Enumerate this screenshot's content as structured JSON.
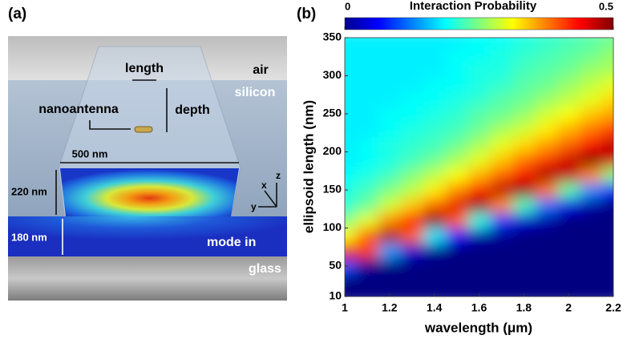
{
  "panel_a": {
    "label": "(a)",
    "labels": {
      "length": "length",
      "depth": "depth",
      "nanoantenna": "nanoantenna",
      "air": "air",
      "silicon": "silicon",
      "width": "500 nm",
      "height": "220 nm",
      "slab": "180 nm",
      "mode": "mode in",
      "glass": "glass",
      "axis_x": "x",
      "axis_y": "y",
      "axis_z": "z"
    }
  },
  "chart_data": {
    "type": "heatmap",
    "panel_label": "(b)",
    "colorbar_title": "Interaction Probability",
    "colorbar_lim": [
      0,
      0.5
    ],
    "colorbar_ticks": [
      0,
      0.5
    ],
    "x_label": "wavelength (μm)",
    "y_label": "ellipsoid length (nm)",
    "xlim": [
      1,
      2.2
    ],
    "ylim": [
      10,
      350
    ],
    "xticks": [
      1,
      1.2,
      1.4,
      1.6,
      1.8,
      2,
      2.2
    ],
    "yticks": [
      10,
      50,
      100,
      150,
      200,
      250,
      300,
      350
    ],
    "x": [
      1,
      1.1,
      1.2,
      1.3,
      1.4,
      1.5,
      1.6,
      1.7,
      1.8,
      1.9,
      2,
      2.1,
      2.2
    ],
    "y": [
      10,
      30,
      50,
      70,
      90,
      110,
      130,
      150,
      170,
      190,
      210,
      230,
      250,
      270,
      290,
      310,
      330,
      350
    ],
    "z": [
      [
        0,
        0,
        0,
        0,
        0,
        0,
        0,
        0,
        0,
        0,
        0,
        0,
        0
      ],
      [
        0,
        0,
        0,
        0,
        0,
        0,
        0,
        0,
        0,
        0,
        0,
        0,
        0
      ],
      [
        0.1,
        0.01,
        0,
        0,
        0,
        0,
        0,
        0,
        0,
        0,
        0,
        0,
        0
      ],
      [
        0.45,
        0.41,
        0.14,
        0.04,
        0.01,
        0,
        0,
        0,
        0,
        0,
        0,
        0,
        0
      ],
      [
        0.31,
        0.39,
        0.48,
        0.39,
        0.18,
        0.07,
        0.02,
        0.01,
        0,
        0,
        0,
        0,
        0
      ],
      [
        0.25,
        0.3,
        0.37,
        0.43,
        0.5,
        0.39,
        0.2,
        0.09,
        0.04,
        0.02,
        0,
        0,
        0
      ],
      [
        0.21,
        0.24,
        0.29,
        0.34,
        0.39,
        0.45,
        0.49,
        0.37,
        0.22,
        0.12,
        0.05,
        0.02,
        0
      ],
      [
        0.2,
        0.22,
        0.25,
        0.28,
        0.32,
        0.37,
        0.42,
        0.47,
        0.49,
        0.38,
        0.23,
        0.13,
        0.07
      ],
      [
        0.19,
        0.2,
        0.22,
        0.25,
        0.28,
        0.31,
        0.35,
        0.39,
        0.44,
        0.48,
        0.47,
        0.37,
        0.25
      ],
      [
        0.18,
        0.19,
        0.2,
        0.22,
        0.24,
        0.27,
        0.3,
        0.34,
        0.38,
        0.41,
        0.46,
        0.5,
        0.46
      ],
      [
        0.18,
        0.19,
        0.2,
        0.21,
        0.22,
        0.24,
        0.27,
        0.3,
        0.33,
        0.36,
        0.39,
        0.43,
        0.47
      ],
      [
        0.18,
        0.18,
        0.19,
        0.2,
        0.21,
        0.22,
        0.24,
        0.27,
        0.29,
        0.32,
        0.35,
        0.38,
        0.41
      ],
      [
        0.18,
        0.18,
        0.19,
        0.19,
        0.2,
        0.21,
        0.23,
        0.24,
        0.26,
        0.29,
        0.31,
        0.34,
        0.36
      ],
      [
        0.18,
        0.18,
        0.18,
        0.19,
        0.19,
        0.2,
        0.21,
        0.23,
        0.24,
        0.26,
        0.28,
        0.3,
        0.33
      ],
      [
        0.18,
        0.18,
        0.18,
        0.18,
        0.19,
        0.19,
        0.2,
        0.21,
        0.23,
        0.24,
        0.26,
        0.28,
        0.3
      ],
      [
        0.18,
        0.18,
        0.18,
        0.18,
        0.18,
        0.19,
        0.2,
        0.2,
        0.22,
        0.23,
        0.24,
        0.26,
        0.27
      ],
      [
        0.18,
        0.18,
        0.18,
        0.18,
        0.18,
        0.19,
        0.19,
        0.2,
        0.21,
        0.22,
        0.23,
        0.24,
        0.26
      ],
      [
        0.18,
        0.18,
        0.18,
        0.18,
        0.18,
        0.18,
        0.19,
        0.19,
        0.2,
        0.21,
        0.22,
        0.23,
        0.24
      ]
    ]
  }
}
